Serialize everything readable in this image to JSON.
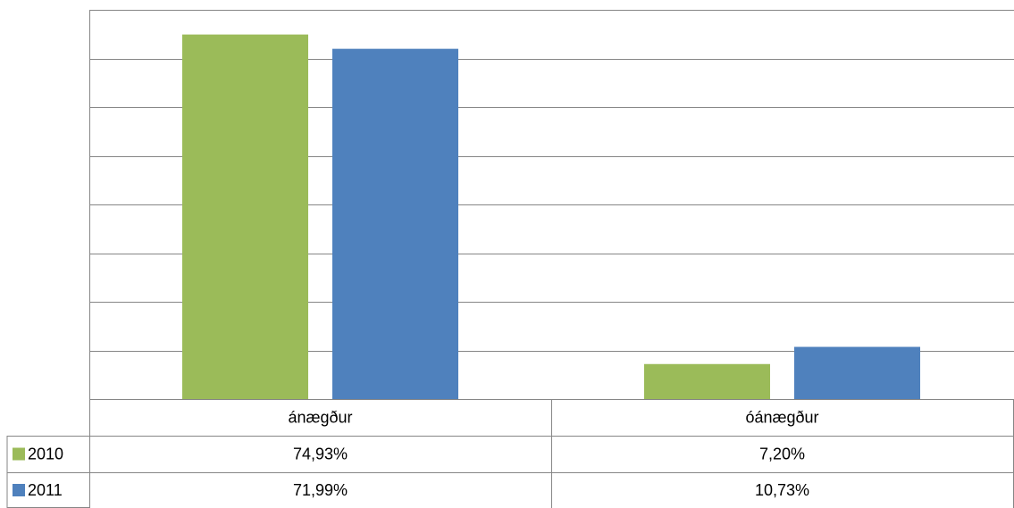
{
  "chart_data": {
    "type": "bar",
    "categories": [
      "ánægður",
      "óánægður"
    ],
    "series": [
      {
        "name": "2010",
        "color": "#9bbb59",
        "values": [
          74.93,
          7.2
        ],
        "value_labels": [
          "74,93%",
          "7,20%"
        ]
      },
      {
        "name": "2011",
        "color": "#4f81bd",
        "values": [
          71.99,
          10.73
        ],
        "value_labels": [
          "71,99%",
          "10,73%"
        ]
      }
    ],
    "ylim": [
      0,
      80
    ],
    "yticks": [
      0,
      10,
      20,
      30,
      40,
      50,
      60,
      70,
      80
    ],
    "grid": true
  }
}
